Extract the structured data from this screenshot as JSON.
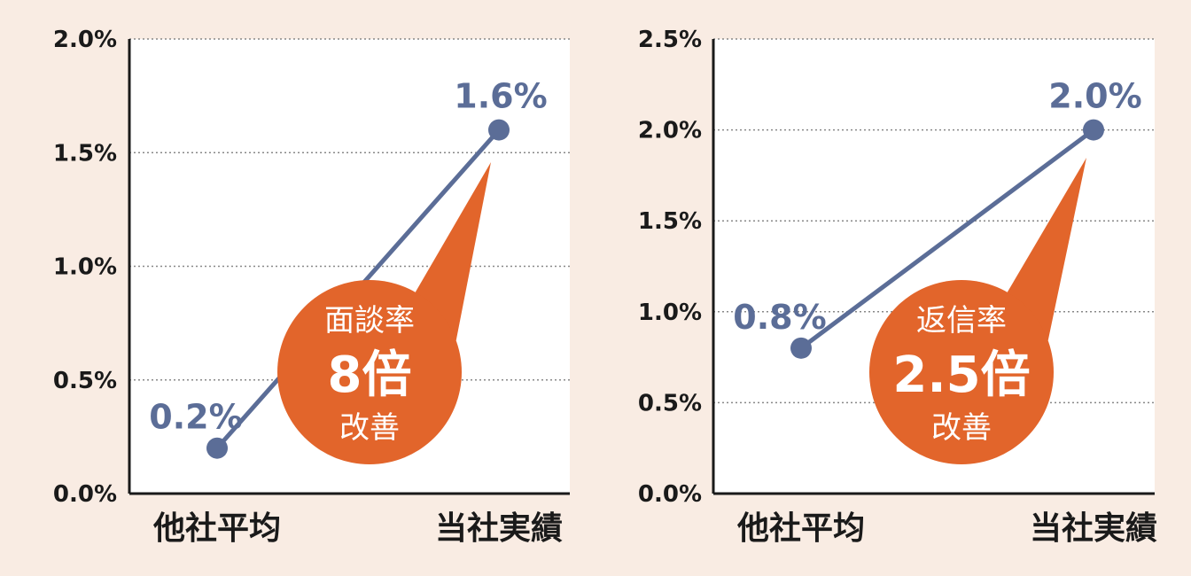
{
  "colors": {
    "background": "#f9ece3",
    "plot_background": "#ffffff",
    "line": "#5b6d97",
    "callout": "#e2652b",
    "grid": "#888888",
    "text": "#1a1a1a"
  },
  "chart_data": [
    {
      "type": "line",
      "categories": [
        "他社平均",
        "当社実績"
      ],
      "values": [
        0.2,
        1.6
      ],
      "data_labels": [
        "0.2%",
        "1.6%"
      ],
      "yticks": [
        "0.0%",
        "0.5%",
        "1.0%",
        "1.5%",
        "2.0%"
      ],
      "ylim": [
        0,
        2.0
      ],
      "grid": true,
      "callout": {
        "line1": "面談率",
        "line2": "8倍",
        "line3": "改善"
      }
    },
    {
      "type": "line",
      "categories": [
        "他社平均",
        "当社実績"
      ],
      "values": [
        0.8,
        2.0
      ],
      "data_labels": [
        "0.8%",
        "2.0%"
      ],
      "yticks": [
        "0.0%",
        "0.5%",
        "1.0%",
        "1.5%",
        "2.0%",
        "2.5%"
      ],
      "ylim": [
        0,
        2.5
      ],
      "grid": true,
      "callout": {
        "line1": "返信率",
        "line2": "2.5倍",
        "line3": "改善"
      }
    }
  ]
}
